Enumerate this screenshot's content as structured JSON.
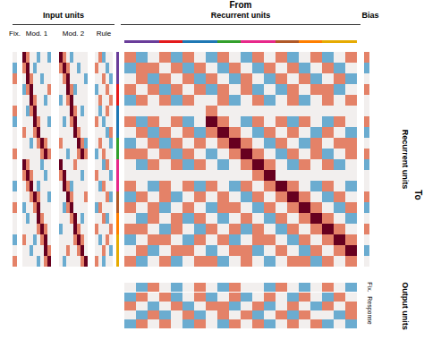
{
  "chart_data": {
    "type": "heatmap",
    "title": "From",
    "row_title": "To",
    "zlim": [
      -2,
      2
    ],
    "tick_labels": false,
    "inputs": {
      "label": "Input units",
      "groups": [
        {
          "name": "Fix.",
          "cells": [
            [
              0
            ],
            [
              -1
            ],
            [
              1
            ],
            [
              0
            ],
            [
              0
            ],
            [
              1
            ],
            [
              -1
            ],
            [
              0
            ],
            [
              0
            ],
            [
              1
            ],
            [
              0
            ],
            [
              0
            ],
            [
              -1
            ],
            [
              0
            ],
            [
              1
            ],
            [
              0
            ],
            [
              0
            ],
            [
              -1
            ],
            [
              0
            ],
            [
              1
            ]
          ]
        },
        {
          "name": "Mod. 1",
          "cells": [
            [
              2,
              1,
              0,
              0,
              -1,
              0,
              0,
              -1
            ],
            [
              1,
              2,
              0,
              -1,
              0,
              0,
              0,
              0
            ],
            [
              0,
              2,
              1,
              0,
              0,
              -1,
              0,
              0
            ],
            [
              -1,
              1,
              2,
              0,
              0,
              0,
              0,
              1
            ],
            [
              0,
              0,
              2,
              1,
              0,
              0,
              -1,
              0
            ],
            [
              0,
              -1,
              1,
              2,
              0,
              0,
              0,
              0
            ],
            [
              0,
              0,
              0,
              2,
              1,
              0,
              0,
              -1
            ],
            [
              1,
              0,
              0,
              1,
              2,
              0,
              0,
              0
            ],
            [
              0,
              0,
              -1,
              0,
              1,
              2,
              1,
              0
            ],
            [
              0,
              0,
              0,
              0,
              0,
              1,
              2,
              1
            ],
            [
              2,
              1,
              0,
              0,
              0,
              -1,
              0,
              0
            ],
            [
              1,
              2,
              1,
              0,
              0,
              0,
              -1,
              0
            ],
            [
              0,
              1,
              2,
              0,
              -1,
              0,
              0,
              0
            ],
            [
              0,
              0,
              1,
              2,
              1,
              0,
              0,
              -1
            ],
            [
              -1,
              0,
              0,
              1,
              2,
              0,
              0,
              0
            ],
            [
              0,
              -1,
              0,
              0,
              2,
              1,
              0,
              0
            ],
            [
              0,
              0,
              0,
              0,
              1,
              2,
              1,
              0
            ],
            [
              1,
              0,
              0,
              -1,
              0,
              1,
              2,
              0
            ],
            [
              0,
              0,
              -1,
              0,
              0,
              0,
              2,
              1
            ],
            [
              0,
              0,
              0,
              0,
              -1,
              0,
              1,
              2
            ]
          ]
        },
        {
          "name": "Mod. 2",
          "cells": [
            [
              2,
              1,
              0,
              -1,
              0,
              0,
              0,
              0
            ],
            [
              1,
              2,
              1,
              0,
              0,
              -1,
              0,
              0
            ],
            [
              0,
              1,
              2,
              0,
              0,
              0,
              0,
              -1
            ],
            [
              0,
              0,
              2,
              1,
              -1,
              0,
              0,
              0
            ],
            [
              -1,
              0,
              1,
              2,
              0,
              0,
              0,
              0
            ],
            [
              0,
              0,
              0,
              2,
              1,
              0,
              -1,
              0
            ],
            [
              0,
              -1,
              0,
              1,
              2,
              0,
              0,
              0
            ],
            [
              0,
              0,
              0,
              0,
              2,
              1,
              0,
              0
            ],
            [
              1,
              0,
              0,
              0,
              0,
              2,
              1,
              -1
            ],
            [
              0,
              0,
              -1,
              0,
              0,
              1,
              2,
              1
            ],
            [
              2,
              0,
              0,
              0,
              1,
              0,
              0,
              0
            ],
            [
              1,
              2,
              0,
              0,
              0,
              0,
              -1,
              0
            ],
            [
              0,
              2,
              1,
              -1,
              0,
              0,
              0,
              0
            ],
            [
              0,
              0,
              2,
              1,
              0,
              0,
              0,
              1
            ],
            [
              0,
              -1,
              1,
              2,
              0,
              0,
              0,
              0
            ],
            [
              0,
              0,
              0,
              1,
              2,
              0,
              -1,
              0
            ],
            [
              -1,
              0,
              0,
              0,
              2,
              1,
              0,
              0
            ],
            [
              0,
              0,
              0,
              0,
              1,
              2,
              1,
              0
            ],
            [
              0,
              0,
              1,
              0,
              0,
              1,
              2,
              0
            ],
            [
              0,
              -1,
              0,
              0,
              0,
              0,
              1,
              2
            ]
          ]
        },
        {
          "name": "Rule",
          "cells": [
            [
              0,
              1,
              -1,
              0,
              0
            ],
            [
              1,
              0,
              0,
              -1,
              0
            ],
            [
              0,
              0,
              1,
              0,
              -1
            ],
            [
              -1,
              0,
              0,
              1,
              0
            ],
            [
              0,
              1,
              0,
              0,
              1
            ],
            [
              0,
              -1,
              0,
              1,
              0
            ],
            [
              1,
              0,
              -1,
              0,
              0
            ],
            [
              0,
              0,
              0,
              -1,
              1
            ],
            [
              0,
              1,
              0,
              0,
              -1
            ],
            [
              -1,
              0,
              1,
              0,
              0
            ],
            [
              0,
              0,
              -1,
              1,
              0
            ],
            [
              1,
              0,
              0,
              0,
              -1
            ],
            [
              0,
              -1,
              1,
              0,
              0
            ],
            [
              0,
              0,
              0,
              1,
              -1
            ],
            [
              -1,
              1,
              0,
              0,
              0
            ],
            [
              0,
              0,
              1,
              -1,
              0
            ],
            [
              1,
              0,
              0,
              0,
              1
            ],
            [
              0,
              -1,
              0,
              1,
              0
            ],
            [
              0,
              0,
              1,
              0,
              -1
            ],
            [
              1,
              0,
              -1,
              0,
              0
            ]
          ]
        }
      ]
    },
    "recurrent": {
      "label": "Recurrent units",
      "cells": [
        [
          1,
          -1,
          0,
          1,
          -1,
          1,
          0,
          -1,
          1,
          0,
          -1,
          1,
          0,
          1,
          -1,
          0,
          1,
          -1,
          0,
          1
        ],
        [
          -1,
          1,
          1,
          0,
          1,
          -1,
          1,
          0,
          -1,
          1,
          0,
          -1,
          1,
          0,
          1,
          -1,
          0,
          1,
          -1,
          0
        ],
        [
          0,
          1,
          -1,
          1,
          0,
          1,
          -1,
          1,
          0,
          -1,
          1,
          0,
          -1,
          1,
          0,
          1,
          -1,
          0,
          1,
          -1
        ],
        [
          1,
          0,
          1,
          -1,
          1,
          0,
          1,
          -1,
          1,
          0,
          1,
          -1,
          0,
          -1,
          1,
          0,
          1,
          1,
          -1,
          0
        ],
        [
          -1,
          1,
          0,
          1,
          -1,
          1,
          0,
          0,
          1,
          -1,
          0,
          1,
          -1,
          0,
          1,
          -1,
          0,
          1,
          0,
          1
        ],
        [
          0,
          0,
          0,
          0,
          0,
          0,
          0,
          1,
          0,
          0,
          0,
          0,
          0,
          0,
          0,
          0,
          0,
          0,
          0,
          0
        ],
        [
          1,
          -1,
          1,
          0,
          1,
          -1,
          0,
          2,
          1,
          0,
          -1,
          1,
          0,
          1,
          -1,
          1,
          0,
          -1,
          1,
          0
        ],
        [
          0,
          1,
          -1,
          1,
          0,
          1,
          -1,
          1,
          2,
          1,
          0,
          -1,
          1,
          0,
          1,
          0,
          -1,
          1,
          0,
          -1
        ],
        [
          -1,
          0,
          1,
          -1,
          1,
          0,
          1,
          0,
          1,
          2,
          1,
          0,
          -1,
          1,
          0,
          -1,
          1,
          0,
          1,
          1
        ],
        [
          1,
          1,
          0,
          1,
          -1,
          1,
          0,
          -1,
          0,
          1,
          2,
          1,
          0,
          -1,
          1,
          0,
          1,
          -1,
          0,
          1
        ],
        [
          0,
          -1,
          1,
          0,
          1,
          -1,
          1,
          0,
          -1,
          0,
          1,
          2,
          1,
          0,
          -1,
          1,
          0,
          1,
          -1,
          0
        ],
        [
          0,
          0,
          0,
          0,
          0,
          0,
          0,
          0,
          0,
          0,
          0,
          1,
          2,
          0,
          0,
          0,
          0,
          0,
          0,
          0
        ],
        [
          1,
          0,
          -1,
          1,
          0,
          1,
          -1,
          1,
          0,
          -1,
          1,
          0,
          1,
          2,
          1,
          0,
          -1,
          1,
          0,
          -1
        ],
        [
          -1,
          1,
          0,
          1,
          -1,
          0,
          1,
          0,
          1,
          0,
          -1,
          1,
          0,
          1,
          2,
          1,
          0,
          -1,
          1,
          0
        ],
        [
          1,
          0,
          1,
          -1,
          0,
          1,
          0,
          -1,
          1,
          1,
          0,
          -1,
          1,
          0,
          1,
          2,
          1,
          0,
          -1,
          1
        ],
        [
          0,
          -1,
          1,
          0,
          1,
          -1,
          1,
          0,
          -1,
          0,
          1,
          0,
          -1,
          1,
          0,
          1,
          2,
          1,
          0,
          -1
        ],
        [
          1,
          1,
          0,
          -1,
          1,
          0,
          -1,
          1,
          0,
          1,
          -1,
          1,
          0,
          -1,
          1,
          0,
          1,
          2,
          1,
          0
        ],
        [
          -1,
          0,
          1,
          1,
          0,
          -1,
          1,
          0,
          1,
          -1,
          0,
          1,
          1,
          0,
          -1,
          1,
          0,
          1,
          2,
          1
        ],
        [
          0,
          1,
          -1,
          0,
          1,
          1,
          0,
          -1,
          0,
          1,
          1,
          -1,
          0,
          1,
          0,
          -1,
          1,
          0,
          1,
          2
        ],
        [
          1,
          -1,
          0,
          1,
          -1,
          0,
          1,
          1,
          -1,
          0,
          1,
          0,
          -1,
          0,
          1,
          1,
          -1,
          1,
          0,
          1
        ]
      ]
    },
    "bias": {
      "label": "Bias",
      "cells": [
        [
          1
        ],
        [
          -1
        ],
        [
          0
        ],
        [
          1
        ],
        [
          0
        ],
        [
          0
        ],
        [
          1
        ],
        [
          -1
        ],
        [
          0
        ],
        [
          1
        ],
        [
          -1
        ],
        [
          0
        ],
        [
          0
        ],
        [
          1
        ],
        [
          -1
        ],
        [
          0
        ],
        [
          1
        ],
        [
          0
        ],
        [
          -1
        ],
        [
          0
        ]
      ]
    },
    "clusters": [
      {
        "color": "#6a3d9a",
        "units": 3
      },
      {
        "color": "#e31a1c",
        "units": 2
      },
      {
        "color": "#1f78b4",
        "units": 3
      },
      {
        "color": "#33a02c",
        "units": 2
      },
      {
        "color": "#e7298a",
        "units": 3
      },
      {
        "color": "#b15928",
        "units": 2
      },
      {
        "color": "#ff7f00",
        "units": 2
      },
      {
        "color": "#e6ab02",
        "units": 3
      }
    ],
    "outputs": {
      "label": "Output units",
      "groups": [
        {
          "name": "Fix.",
          "cells": [
            [
              0,
              -1,
              1,
              0,
              -1,
              0,
              1,
              0,
              -1,
              1,
              0,
              0,
              -1,
              1,
              0,
              -1,
              0,
              1,
              0,
              -1
            ]
          ]
        },
        {
          "name": "Response",
          "cells": [
            [
              -1,
              1,
              0,
              1,
              -1,
              0,
              1,
              -1,
              0,
              1,
              -1,
              0,
              1,
              0,
              -1,
              1,
              0,
              -1,
              1,
              0
            ],
            [
              1,
              0,
              -1,
              0,
              1,
              -1,
              0,
              1,
              1,
              -1,
              0,
              1,
              -1,
              0,
              1,
              0,
              -1,
              1,
              0,
              1
            ],
            [
              0,
              -1,
              1,
              -1,
              0,
              1,
              -1,
              0,
              1,
              0,
              1,
              -1,
              0,
              1,
              -1,
              1,
              0,
              0,
              -1,
              1
            ],
            [
              -1,
              1,
              0,
              1,
              0,
              -1,
              1,
              0,
              -1,
              1,
              0,
              1,
              -1,
              0,
              1,
              0,
              1,
              -1,
              0,
              -1
            ]
          ]
        }
      ]
    }
  }
}
